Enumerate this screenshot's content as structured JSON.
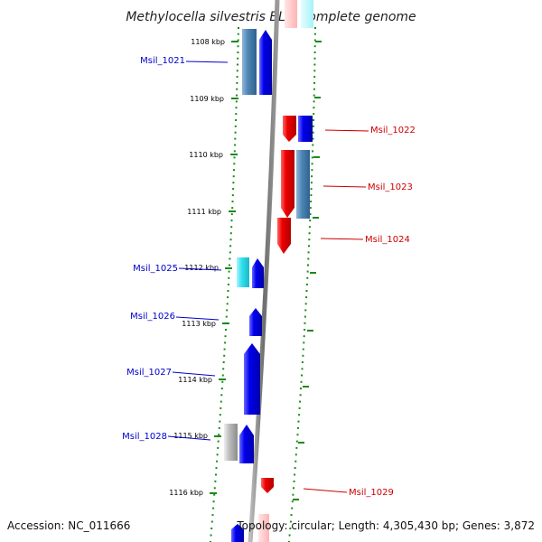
{
  "map": {
    "title": "Methylocella silvestris BL2, complete genome",
    "accession": "Accession: NC_011666",
    "stats": "Topology: circular; Length: 4,305,430 bp; Genes: 3,872"
  },
  "ticks": [
    "1108 kbp",
    "1109 kbp",
    "1110 kbp",
    "1111 kbp",
    "1112 kbp",
    "1113 kbp",
    "1114 kbp",
    "1115 kbp",
    "1116 kbp"
  ],
  "gene_labels": [
    "Msil_1021",
    "Msil_1022",
    "Msil_1023",
    "Msil_1024",
    "Msil_1025",
    "Msil_1026",
    "Msil_1027",
    "Msil_1028",
    "Msil_1029"
  ],
  "colors": {
    "forward": "#0000ee",
    "reverse": "#dd0000",
    "cyan": "#33e0ee",
    "steel": "#4f86b5",
    "grey": "#b8b8b8",
    "backbone": "#7a7a7a",
    "tick_marks": "#1a8a1a"
  }
}
